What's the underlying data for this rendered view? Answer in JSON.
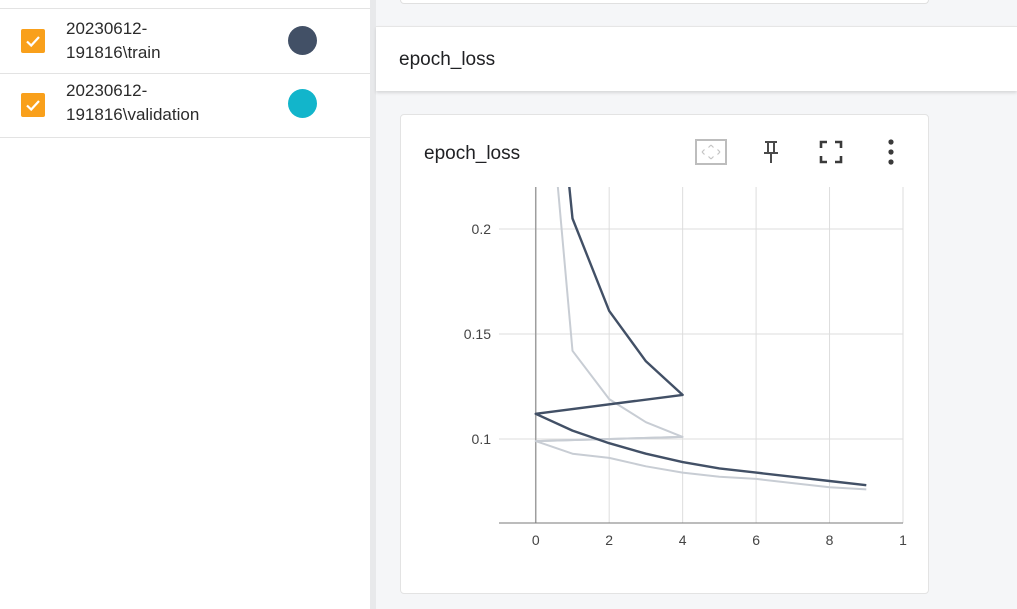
{
  "runs": [
    {
      "label": "20230612-\n191816\\train",
      "checked": true,
      "color": "#425066"
    },
    {
      "label": "20230612-\n191816\\validation",
      "checked": true,
      "color": "#12b5cb"
    }
  ],
  "group": {
    "title": "epoch_loss"
  },
  "card": {
    "title": "epoch_loss",
    "tools": [
      "fit-to-data-icon",
      "pin-icon",
      "fullscreen-icon",
      "more-vert-icon"
    ]
  },
  "colors": {
    "checkbox": "#f9a01b",
    "train_smoothed": "#425066",
    "raw": "#c8cdd4",
    "grid": "#dddddd"
  },
  "chart_data": {
    "type": "line",
    "title": "epoch_loss",
    "xlabel": "",
    "ylabel": "",
    "xlim": [
      -1,
      10
    ],
    "ylim": [
      0.06,
      0.22
    ],
    "x_ticks": [
      "0",
      "2",
      "4",
      "6",
      "8",
      "1"
    ],
    "y_ticks": [
      "0.2",
      "0.15",
      "0.1"
    ],
    "series": [
      {
        "values": [
          [
            0.8,
            0.24
          ],
          [
            1,
            0.205
          ],
          [
            2,
            0.161
          ],
          [
            3,
            0.137
          ],
          [
            4,
            0.121
          ],
          [
            0,
            0.112
          ],
          [
            1,
            0.104
          ],
          [
            2,
            0.098
          ],
          [
            3,
            0.093
          ],
          [
            4,
            0.089
          ],
          [
            5,
            0.086
          ],
          [
            6,
            0.084
          ],
          [
            7,
            0.082
          ],
          [
            8,
            0.08
          ],
          [
            9,
            0.078
          ]
        ]
      },
      {
        "values": [
          [
            0.5,
            0.24
          ],
          [
            1,
            0.142
          ],
          [
            2,
            0.119
          ],
          [
            3,
            0.108
          ],
          [
            4,
            0.101
          ],
          [
            0,
            0.099
          ],
          [
            1,
            0.093
          ],
          [
            2,
            0.091
          ],
          [
            3,
            0.087
          ],
          [
            4,
            0.084
          ],
          [
            5,
            0.082
          ],
          [
            6,
            0.081
          ],
          [
            7,
            0.079
          ],
          [
            8,
            0.077
          ],
          [
            9,
            0.076
          ]
        ]
      },
      {
        "values": [
          [
            0,
            0.099
          ],
          [
            4,
            0.101
          ]
        ]
      }
    ]
  }
}
